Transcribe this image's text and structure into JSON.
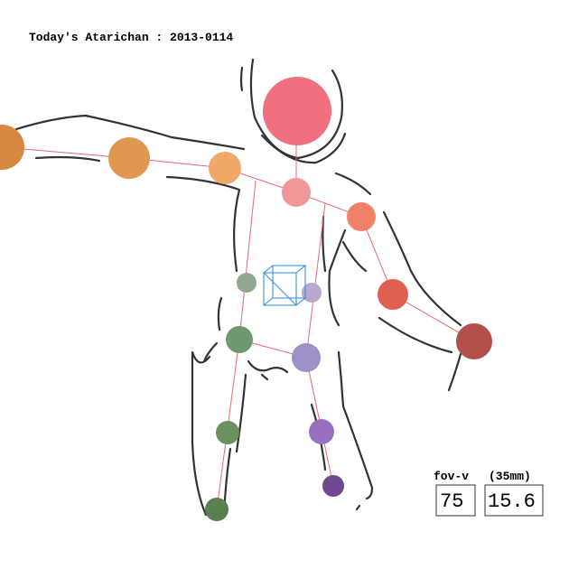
{
  "header": {
    "title": "Today's Atarichan : 2013-0114"
  },
  "camera": {
    "label": "fov-v",
    "lens": "(35mm)",
    "fov": 75,
    "focal": 15.6
  }
}
